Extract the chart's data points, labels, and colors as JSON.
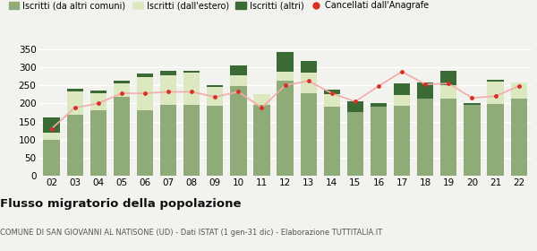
{
  "years": [
    "02",
    "03",
    "04",
    "05",
    "06",
    "07",
    "08",
    "09",
    "10",
    "11",
    "12",
    "13",
    "14",
    "15",
    "16",
    "17",
    "18",
    "19",
    "20",
    "21",
    "22"
  ],
  "iscritti_comuni": [
    100,
    168,
    182,
    218,
    182,
    197,
    197,
    193,
    248,
    195,
    263,
    228,
    190,
    175,
    190,
    193,
    213,
    213,
    197,
    198,
    213
  ],
  "iscritti_estero": [
    20,
    65,
    45,
    37,
    92,
    82,
    88,
    52,
    30,
    30,
    25,
    58,
    35,
    0,
    0,
    30,
    0,
    38,
    0,
    62,
    45
  ],
  "iscritti_altri": [
    40,
    8,
    8,
    8,
    8,
    12,
    5,
    5,
    28,
    0,
    55,
    32,
    12,
    30,
    12,
    32,
    45,
    38,
    5,
    5,
    0
  ],
  "cancellati": [
    130,
    188,
    200,
    228,
    228,
    232,
    232,
    218,
    232,
    188,
    250,
    262,
    228,
    205,
    248,
    288,
    253,
    255,
    215,
    220,
    248
  ],
  "color_comuni": "#8fac78",
  "color_estero": "#dce8c0",
  "color_altri": "#3a6b35",
  "color_cancellati": "#d93025",
  "color_line": "#f5aaaa",
  "ylim": [
    0,
    375
  ],
  "yticks": [
    0,
    50,
    100,
    150,
    200,
    250,
    300,
    350
  ],
  "title": "Flusso migratorio della popolazione",
  "subtitle": "COMUNE DI SAN GIOVANNI AL NATISONE (UD) - Dati ISTAT (1 gen-31 dic) - Elaborazione TUTTITALIA.IT",
  "legend_labels": [
    "Iscritti (da altri comuni)",
    "Iscritti (dall'estero)",
    "Iscritti (altri)",
    "Cancellati dall'Anagrafe"
  ],
  "background_color": "#f2f2ee"
}
